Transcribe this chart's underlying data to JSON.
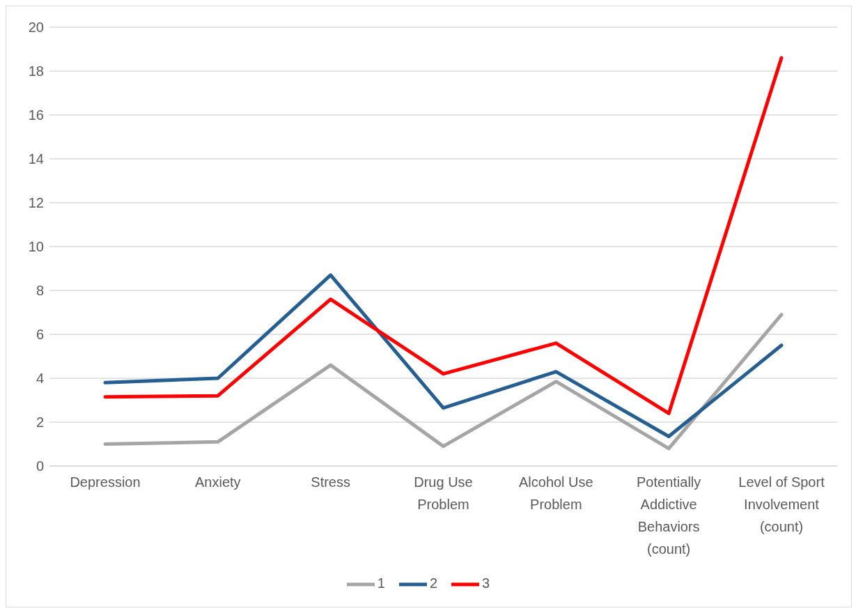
{
  "chart_data": {
    "type": "line",
    "categories": [
      "Depression",
      "Anxiety",
      "Stress",
      "Drug Use Problem",
      "Alcohol Use Problem",
      "Potentially Addictive Behaviors (count)",
      "Level of Sport Involvement (count)"
    ],
    "series": [
      {
        "name": "1",
        "color": "#a5a5a5",
        "values": [
          1.0,
          1.1,
          4.6,
          0.9,
          3.85,
          0.8,
          6.9
        ]
      },
      {
        "name": "2",
        "color": "#255e91",
        "values": [
          3.8,
          4.0,
          8.7,
          2.65,
          4.3,
          1.35,
          5.5
        ]
      },
      {
        "name": "3",
        "color": "#ff0000",
        "values": [
          3.15,
          3.2,
          7.6,
          4.2,
          5.6,
          2.4,
          18.6
        ]
      }
    ],
    "ylim": [
      0,
      20
    ],
    "yticks": [
      0,
      2,
      4,
      6,
      8,
      10,
      12,
      14,
      16,
      18,
      20
    ],
    "grid": "y",
    "legend": "bottom",
    "marker": "none",
    "line_style": "solid"
  }
}
